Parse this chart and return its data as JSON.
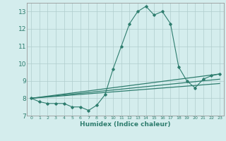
{
  "xlabel": "Humidex (Indice chaleur)",
  "bg_color": "#d4eded",
  "grid_color": "#b0cccc",
  "line_color": "#2e7d6e",
  "xlim": [
    -0.5,
    23.5
  ],
  "ylim": [
    7,
    13.5
  ],
  "yticks": [
    7,
    8,
    9,
    10,
    11,
    12,
    13
  ],
  "xticks": [
    0,
    1,
    2,
    3,
    4,
    5,
    6,
    7,
    8,
    9,
    10,
    11,
    12,
    13,
    14,
    15,
    16,
    17,
    18,
    19,
    20,
    21,
    22,
    23
  ],
  "x_labels": [
    "0",
    "1",
    "2",
    "3",
    "4",
    "5",
    "6",
    "7",
    "8",
    "9",
    "10",
    "11",
    "12",
    "13",
    "14",
    "15",
    "16",
    "17",
    "18",
    "19",
    "20",
    "21",
    "22",
    "23"
  ],
  "curve1_x": [
    0,
    1,
    2,
    3,
    4,
    5,
    6,
    7,
    8,
    9,
    10,
    11,
    12,
    13,
    14,
    15,
    16,
    17,
    18,
    19,
    20,
    21,
    22,
    23
  ],
  "curve1_y": [
    8.0,
    7.8,
    7.7,
    7.7,
    7.7,
    7.5,
    7.5,
    7.3,
    7.6,
    8.2,
    9.7,
    11.0,
    12.3,
    13.0,
    13.3,
    12.8,
    13.0,
    12.3,
    9.8,
    9.0,
    8.6,
    9.1,
    9.3,
    9.4
  ],
  "curve2_x": [
    0,
    23
  ],
  "curve2_y": [
    8.0,
    9.4
  ],
  "curve3_x": [
    0,
    23
  ],
  "curve3_y": [
    8.0,
    9.1
  ],
  "curve4_x": [
    0,
    23
  ],
  "curve4_y": [
    8.0,
    8.85
  ]
}
